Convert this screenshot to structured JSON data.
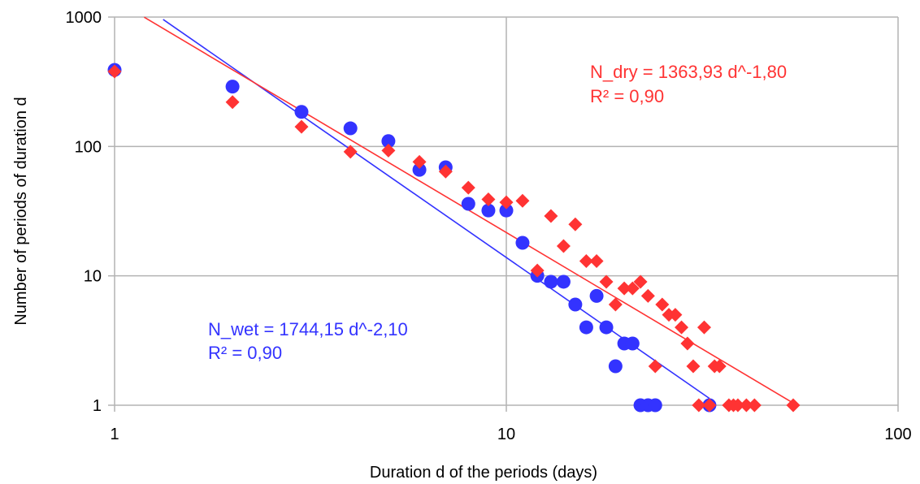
{
  "chart_data": {
    "type": "scatter",
    "xlabel": "Duration d of the periods (days)",
    "ylabel": "Number of periods of duration d",
    "xscale": "log",
    "yscale": "log",
    "xlim": [
      1,
      100
    ],
    "ylim": [
      1,
      1000
    ],
    "grid": true,
    "x_ticks": [
      "1",
      "10",
      "100"
    ],
    "y_ticks": [
      "1",
      "10",
      "100",
      "1000"
    ],
    "series": [
      {
        "color": "#3333ff",
        "marker": "circle",
        "points": [
          [
            1,
            390
          ],
          [
            2,
            290
          ],
          [
            3,
            185
          ],
          [
            4,
            138
          ],
          [
            5,
            110
          ],
          [
            6,
            66
          ],
          [
            7,
            69
          ],
          [
            8,
            36
          ],
          [
            9,
            32
          ],
          [
            10,
            32
          ],
          [
            11,
            18
          ],
          [
            12,
            10
          ],
          [
            13,
            9
          ],
          [
            14,
            9
          ],
          [
            15,
            6
          ],
          [
            16,
            4
          ],
          [
            17,
            7
          ],
          [
            18,
            4
          ],
          [
            19,
            2
          ],
          [
            20,
            3
          ],
          [
            21,
            3
          ],
          [
            22,
            1
          ],
          [
            23,
            1
          ],
          [
            24,
            1
          ],
          [
            33,
            1
          ]
        ],
        "trendline": {
          "a": 1744.15,
          "b": -2.1,
          "x_range": [
            1.33,
            33
          ]
        }
      },
      {
        "color": "#ff3333",
        "marker": "diamond",
        "points": [
          [
            1,
            380
          ],
          [
            2,
            220
          ],
          [
            3,
            142
          ],
          [
            4,
            91
          ],
          [
            5,
            93
          ],
          [
            6,
            76
          ],
          [
            7,
            64
          ],
          [
            8,
            48
          ],
          [
            9,
            39
          ],
          [
            10,
            37
          ],
          [
            11,
            38
          ],
          [
            12,
            11
          ],
          [
            13,
            29
          ],
          [
            14,
            17
          ],
          [
            15,
            25
          ],
          [
            16,
            13
          ],
          [
            17,
            13
          ],
          [
            18,
            9
          ],
          [
            19,
            6
          ],
          [
            20,
            8
          ],
          [
            21,
            8
          ],
          [
            22,
            9
          ],
          [
            23,
            7
          ],
          [
            24,
            2
          ],
          [
            25,
            6
          ],
          [
            26,
            5
          ],
          [
            27,
            5
          ],
          [
            28,
            4
          ],
          [
            29,
            3
          ],
          [
            30,
            2
          ],
          [
            31,
            1
          ],
          [
            32,
            4
          ],
          [
            33,
            1
          ],
          [
            34,
            2
          ],
          [
            35,
            2
          ],
          [
            37,
            1
          ],
          [
            38,
            1
          ],
          [
            39,
            1
          ],
          [
            41,
            1
          ],
          [
            43,
            1
          ],
          [
            54,
            1
          ]
        ],
        "trendline": {
          "a": 1363.93,
          "b": -1.8,
          "x_range": [
            1.19,
            54
          ]
        }
      }
    ],
    "annotations": [
      {
        "lines": [
          "N_dry = 1363,93 d^-1,80",
          "R² = 0,90"
        ],
        "color": "#ff3333",
        "placement": "upper-right"
      },
      {
        "lines": [
          "N_wet = 1744,15 d^-2,10",
          "R² = 0,90"
        ],
        "color": "#3333ff",
        "placement": "lower-left"
      }
    ]
  }
}
